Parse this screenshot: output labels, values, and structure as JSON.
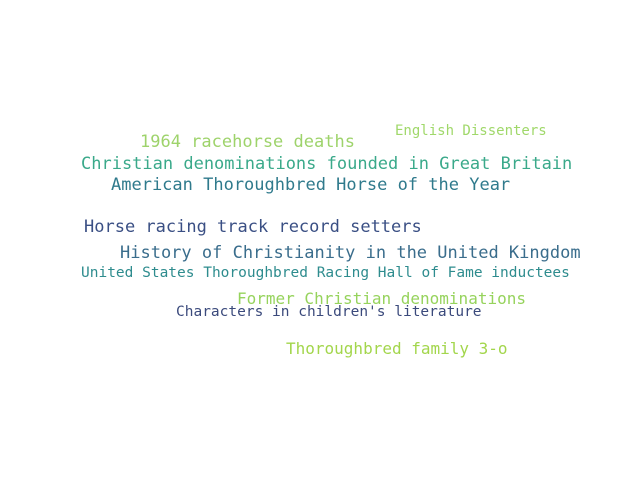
{
  "words": [
    {
      "text": "English Dissenters",
      "color": "#a0d86a"
    },
    {
      "text": "1964 racehorse deaths",
      "color": "#9ed36b"
    },
    {
      "text": "Christian denominations founded in Great Britain",
      "color": "#3aa98a"
    },
    {
      "text": "American Thoroughbred Horse of the Year",
      "color": "#2f7a8c"
    },
    {
      "text": "Horse racing track record setters",
      "color": "#3a4f84"
    },
    {
      "text": "History of Christianity in the United Kingdom",
      "color": "#3a6d8c"
    },
    {
      "text": "United States Thoroughbred Racing Hall of Fame inductees",
      "color": "#2e8c8e"
    },
    {
      "text": "Former Christian denominations",
      "color": "#96d35c"
    },
    {
      "text": "Characters in children's literature",
      "color": "#3b4a7c"
    },
    {
      "text": "Thoroughbred family 3-o",
      "color": "#a3d64c"
    }
  ]
}
